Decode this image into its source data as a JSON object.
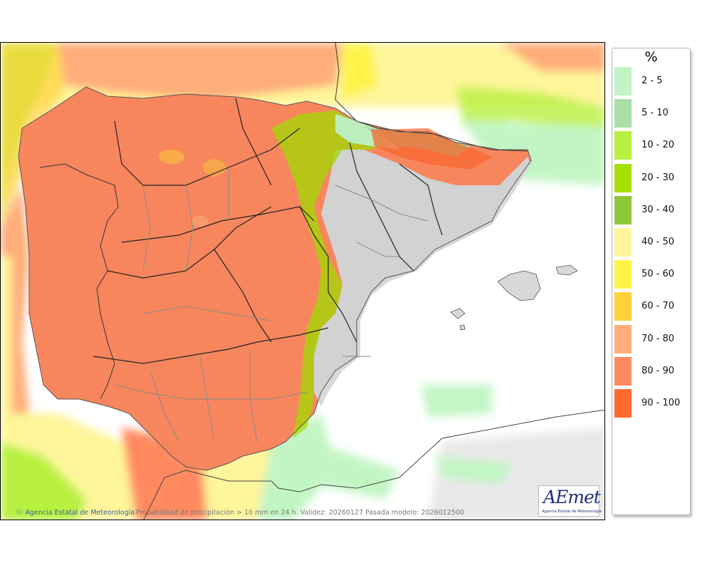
{
  "map": {
    "credit": "Agencia Estatal de Meteorología",
    "caption": "Probabilidad de precipitación > 10 mm en 24 h. Validez: 20260127 Pasada modelo: 2026012500",
    "logo_text": "AEmet",
    "logo_subtitle": "Agencia Estatal de Meteorología"
  },
  "legend": {
    "title": "%",
    "classes": [
      {
        "label": "2 - 5",
        "color": "#c2f5c4"
      },
      {
        "label": "5 - 10",
        "color": "#a8e0a8"
      },
      {
        "label": "10 - 20",
        "color": "#b8f040"
      },
      {
        "label": "20 - 30",
        "color": "#a6e000"
      },
      {
        "label": "30 - 40",
        "color": "#8ec83a"
      },
      {
        "label": "40 - 50",
        "color": "#fff59a"
      },
      {
        "label": "50 - 60",
        "color": "#fff34a"
      },
      {
        "label": "60 - 70",
        "color": "#ffd23a"
      },
      {
        "label": "70 - 80",
        "color": "#ffad7a"
      },
      {
        "label": "80 - 90",
        "color": "#ff8a60"
      },
      {
        "label": "90 - 100",
        "color": "#ff6a30"
      }
    ]
  },
  "colors": {
    "land_grey": "#d8d8d8",
    "sea": "#ffffff",
    "border": "#333333",
    "province_border": "#8a8a8a"
  }
}
